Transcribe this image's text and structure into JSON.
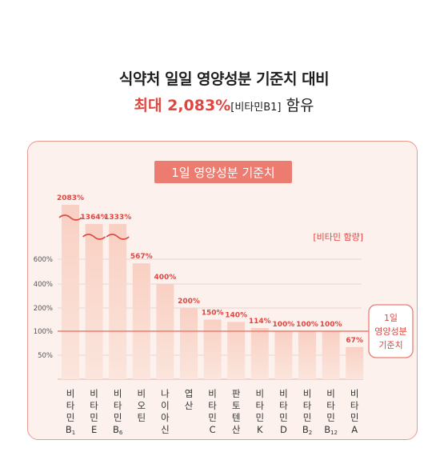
{
  "headline": {
    "line1": "식약처 일일 영양성분 기준치 대비",
    "highlight": "최대 2,083%",
    "note": "[비타민B1]",
    "suffix": " 함유"
  },
  "chart_data": {
    "type": "bar",
    "title": "1일 영양성분 기준치",
    "legend": "[비타민 함량]",
    "reference_label": [
      "1일",
      "영양성분",
      "기준치"
    ],
    "reference_value": 100,
    "y_ticks": [
      "50%",
      "100%",
      "200%",
      "400%",
      "600%"
    ],
    "categories": [
      [
        "비",
        "타",
        "민",
        "B1"
      ],
      [
        "비",
        "타",
        "민",
        "E"
      ],
      [
        "비",
        "타",
        "민",
        "B6"
      ],
      [
        "비",
        "오",
        "틴"
      ],
      [
        "나",
        "이",
        "아",
        "신"
      ],
      [
        "엽",
        "산"
      ],
      [
        "비",
        "타",
        "민",
        "C"
      ],
      [
        "판",
        "토",
        "텐",
        "산"
      ],
      [
        "비",
        "타",
        "민",
        "K"
      ],
      [
        "비",
        "타",
        "민",
        "D"
      ],
      [
        "비",
        "타",
        "민",
        "B2"
      ],
      [
        "비",
        "타",
        "민",
        "B12"
      ],
      [
        "비",
        "타",
        "민",
        "A"
      ]
    ],
    "values": [
      2083,
      1364,
      1333,
      567,
      400,
      200,
      150,
      140,
      114,
      100,
      100,
      100,
      67
    ],
    "value_labels": [
      "2083%",
      "1364%",
      "1333%",
      "567%",
      "400%",
      "200%",
      "150%",
      "140%",
      "114%",
      "100%",
      "100%",
      "100%",
      "67%"
    ],
    "axis_breaks": [
      true,
      true,
      true,
      false,
      false,
      false,
      false,
      false,
      false,
      false,
      false,
      false,
      false
    ],
    "colors": {
      "bar_top": "#f9d0c3",
      "bar_bottom": "#fbe5dc",
      "accent": "#e0463f",
      "label": "#e0463f",
      "reference": "#ec7c70"
    }
  }
}
